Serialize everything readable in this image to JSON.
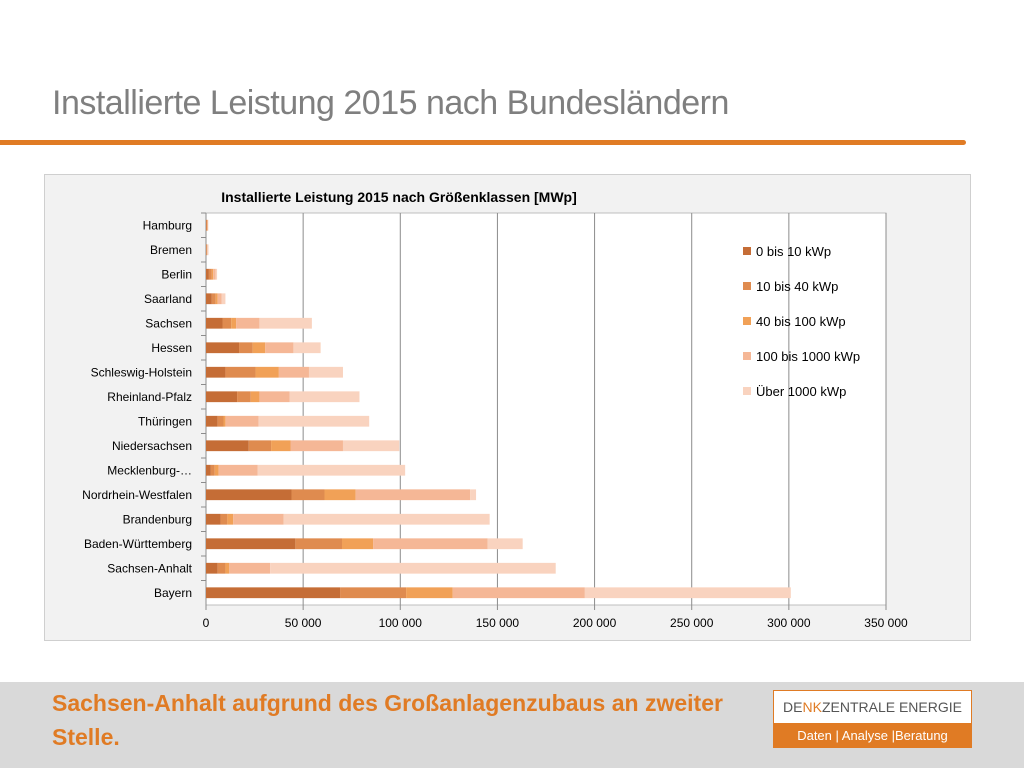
{
  "slide": {
    "title": "Installierte Leistung 2015 nach Bundesländern",
    "conclusion": "Sachsen-Anhalt aufgrund des Großanlagenzubaus an zweiter Stelle."
  },
  "brand": {
    "name_part1": "DE",
    "name_highlight": "NK",
    "name_part2": "ZENTRALE ENERGIE",
    "tagline": "Daten | Analyse |Beratung"
  },
  "colors": {
    "accent": "#e07b24",
    "title_gray": "#7f7f7f",
    "series": [
      "#c56d36",
      "#df8b4f",
      "#f1a157",
      "#f5b796",
      "#f9d3bf"
    ]
  },
  "chart_data": {
    "type": "bar",
    "orientation": "horizontal",
    "stacked": true,
    "title": "Installierte Leistung 2015 nach Größenklassen [MWp]",
    "xlabel": "",
    "ylabel": "",
    "xlim": [
      0,
      350000
    ],
    "x_ticks": [
      "0",
      "50 000",
      "100 000",
      "150 000",
      "200 000",
      "250 000",
      "300 000",
      "350 000"
    ],
    "grid": "vertical",
    "legend": "right",
    "categories": [
      "Hamburg",
      "Bremen",
      "Berlin",
      "Saarland",
      "Sachsen",
      "Hessen",
      "Schleswig-Holstein",
      "Rheinland-Pfalz",
      "Thüringen",
      "Niedersachsen",
      "Mecklenburg-…",
      "Nordrhein-Westfalen",
      "Brandenburg",
      "Baden-Württemberg",
      "Sachsen-Anhalt",
      "Bayern"
    ],
    "series": [
      {
        "name": "0 bis 10 kWp",
        "values": [
          300,
          200,
          1500,
          3000,
          8500,
          17000,
          10000,
          16000,
          6000,
          22000,
          2500,
          44000,
          7500,
          46000,
          6000,
          69000
        ]
      },
      {
        "name": "10 bis 40 kWp",
        "values": [
          300,
          200,
          1500,
          2000,
          4500,
          7000,
          15500,
          7000,
          3000,
          11500,
          2000,
          17000,
          3500,
          24000,
          4000,
          34000
        ]
      },
      {
        "name": "40 bis 100 kWp",
        "values": [
          200,
          200,
          700,
          1000,
          2500,
          6500,
          12000,
          4500,
          1000,
          10000,
          2000,
          16000,
          3000,
          16000,
          2000,
          24000
        ]
      },
      {
        "name": "100 bis 1000 kWp",
        "values": [
          300,
          300,
          1300,
          2000,
          12000,
          14500,
          15500,
          15500,
          17000,
          27000,
          20000,
          59000,
          26000,
          59000,
          21000,
          68000
        ]
      },
      {
        "name": "Über 1000 kWp",
        "values": [
          100,
          400,
          700,
          2000,
          27000,
          14000,
          17500,
          36000,
          57000,
          29000,
          76000,
          3000,
          106000,
          18000,
          147000,
          106000
        ]
      }
    ]
  }
}
